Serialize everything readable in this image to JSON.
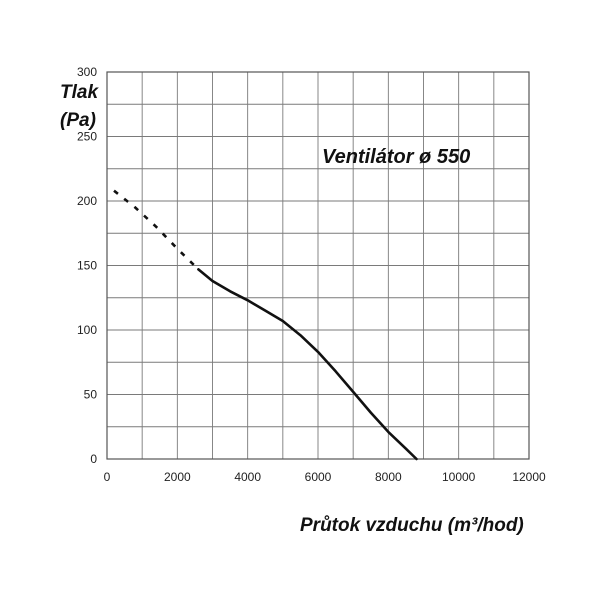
{
  "chart_data": {
    "type": "line",
    "title": "Ventilátor ø 550",
    "ylabel_line1": "Tlak",
    "ylabel_line2": "(Pa)",
    "xlabel": "Průtok vzduchu (m³/hod)",
    "xlim": [
      0,
      12000
    ],
    "ylim": [
      0,
      300
    ],
    "x_ticks": [
      0,
      2000,
      4000,
      6000,
      8000,
      10000,
      12000
    ],
    "y_ticks": [
      0,
      50,
      100,
      150,
      200,
      250,
      300
    ],
    "x_minor_step": 1000,
    "y_minor_step": 25,
    "grid": true,
    "series": [
      {
        "style": "dashed",
        "points": [
          [
            200,
            208
          ],
          [
            800,
            195
          ],
          [
            1400,
            180
          ],
          [
            2000,
            163
          ],
          [
            2600,
            147
          ]
        ]
      },
      {
        "style": "solid",
        "points": [
          [
            2600,
            147
          ],
          [
            3000,
            138
          ],
          [
            3500,
            130
          ],
          [
            4000,
            123
          ],
          [
            4500,
            115
          ],
          [
            5000,
            107
          ],
          [
            5500,
            96
          ],
          [
            6000,
            83
          ],
          [
            6500,
            68
          ],
          [
            7000,
            52
          ],
          [
            7500,
            36
          ],
          [
            8000,
            21
          ],
          [
            8500,
            8
          ],
          [
            8800,
            0
          ]
        ]
      }
    ]
  }
}
